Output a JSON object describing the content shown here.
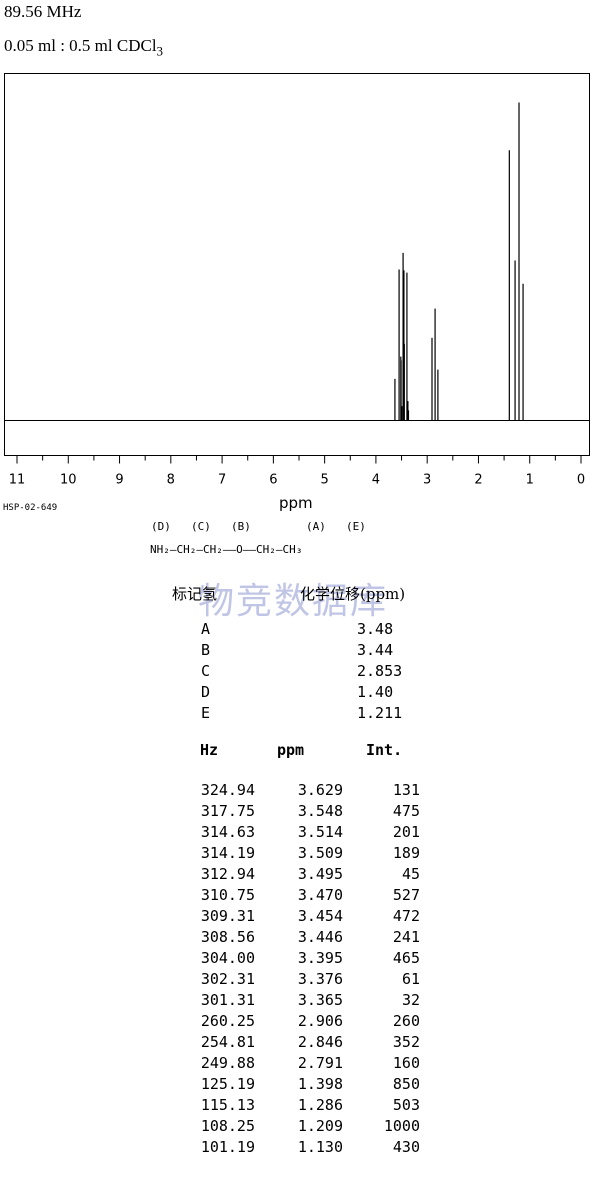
{
  "header": {
    "frequency": "89.56 MHz",
    "sample": "0.05 ml : 0.5 ml CDCl",
    "sample_sub": "3"
  },
  "chart_data": {
    "type": "line",
    "xlabel": "ppm",
    "xlim": [
      11,
      0
    ],
    "x_reversed": true,
    "xticks": [
      "11",
      "10",
      "9",
      "8",
      "7",
      "6",
      "5",
      "4",
      "3",
      "2",
      "1",
      "0"
    ],
    "grid": false,
    "peaks": [
      {
        "ppm": 3.629,
        "intensity": 131
      },
      {
        "ppm": 3.548,
        "intensity": 475
      },
      {
        "ppm": 3.514,
        "intensity": 201
      },
      {
        "ppm": 3.509,
        "intensity": 189
      },
      {
        "ppm": 3.495,
        "intensity": 45
      },
      {
        "ppm": 3.47,
        "intensity": 527
      },
      {
        "ppm": 3.454,
        "intensity": 472
      },
      {
        "ppm": 3.446,
        "intensity": 241
      },
      {
        "ppm": 3.395,
        "intensity": 465
      },
      {
        "ppm": 3.376,
        "intensity": 61
      },
      {
        "ppm": 3.365,
        "intensity": 32
      },
      {
        "ppm": 2.906,
        "intensity": 260
      },
      {
        "ppm": 2.846,
        "intensity": 352
      },
      {
        "ppm": 2.791,
        "intensity": 160
      },
      {
        "ppm": 1.398,
        "intensity": 850
      },
      {
        "ppm": 1.286,
        "intensity": 503
      },
      {
        "ppm": 1.209,
        "intensity": 1000
      },
      {
        "ppm": 1.13,
        "intensity": 430
      }
    ]
  },
  "code": "HSP-02-649",
  "structure": {
    "labels": [
      "(D)",
      "(C)",
      "(B)",
      "(A)",
      "(E)"
    ],
    "formula": "NH₂—CH₂—CH₂——O——CH₂—CH₃"
  },
  "watermark": "物竞数据库",
  "shift_table": {
    "col1": "标记氢",
    "col2": "化学位移(ppm)",
    "rows": [
      {
        "label": "A",
        "value": "3.48"
      },
      {
        "label": "B",
        "value": "3.44"
      },
      {
        "label": "C",
        "value": "2.853"
      },
      {
        "label": "D",
        "value": "1.40"
      },
      {
        "label": "E",
        "value": "1.211"
      }
    ]
  },
  "peak_table": {
    "headers": [
      "Hz",
      "ppm",
      "Int."
    ],
    "rows": [
      [
        "324.94",
        "3.629",
        "131"
      ],
      [
        "317.75",
        "3.548",
        "475"
      ],
      [
        "314.63",
        "3.514",
        "201"
      ],
      [
        "314.19",
        "3.509",
        "189"
      ],
      [
        "312.94",
        "3.495",
        "45"
      ],
      [
        "310.75",
        "3.470",
        "527"
      ],
      [
        "309.31",
        "3.454",
        "472"
      ],
      [
        "308.56",
        "3.446",
        "241"
      ],
      [
        "304.00",
        "3.395",
        "465"
      ],
      [
        "302.31",
        "3.376",
        "61"
      ],
      [
        "301.31",
        "3.365",
        "32"
      ],
      [
        "260.25",
        "2.906",
        "260"
      ],
      [
        "254.81",
        "2.846",
        "352"
      ],
      [
        "249.88",
        "2.791",
        "160"
      ],
      [
        "125.19",
        "1.398",
        "850"
      ],
      [
        "115.13",
        "1.286",
        "503"
      ],
      [
        "108.25",
        "1.209",
        "1000"
      ],
      [
        "101.19",
        "1.130",
        "430"
      ]
    ]
  }
}
